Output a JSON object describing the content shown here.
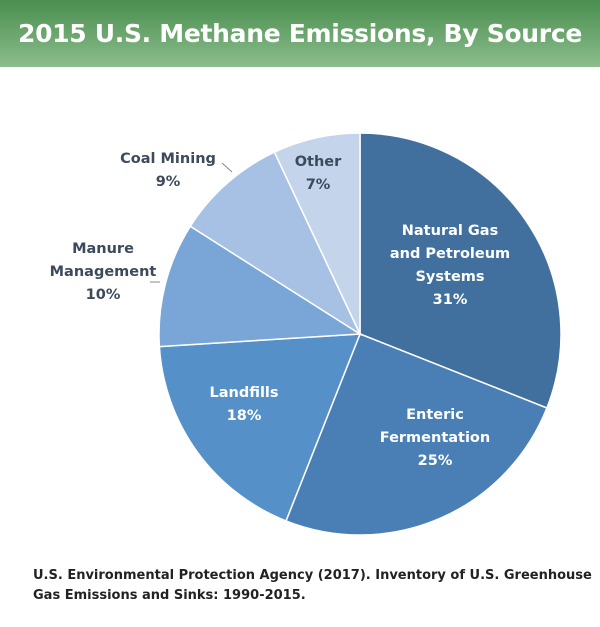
{
  "chart_data": {
    "type": "pie",
    "title": "2015 U.S. Methane Emissions, By Source",
    "start": "12 o'clock, clockwise",
    "slices": [
      {
        "label": [
          "Natural Gas",
          "and Petroleum",
          "Systems"
        ],
        "value": 31,
        "pct": "31%",
        "color": "#41709f",
        "text_color": "#ffffff"
      },
      {
        "label": [
          "Enteric",
          "Fermentation"
        ],
        "value": 25,
        "pct": "25%",
        "color": "#4a7fb6",
        "text_color": "#ffffff"
      },
      {
        "label": [
          "Landfills"
        ],
        "value": 18,
        "pct": "18%",
        "color": "#5590c8",
        "text_color": "#ffffff"
      },
      {
        "label": [
          "Manure",
          "Management"
        ],
        "value": 10,
        "pct": "10%",
        "color": "#79a6d7",
        "text_color": "#3c4a5c"
      },
      {
        "label": [
          "Coal Mining"
        ],
        "value": 9,
        "pct": "9%",
        "color": "#a6c1e3",
        "text_color": "#3c4a5c"
      },
      {
        "label": [
          "Other"
        ],
        "value": 7,
        "pct": "7%",
        "color": "#c4d5eb",
        "text_color": "#3c4a5c"
      }
    ],
    "source": "U.S. Environmental Protection Agency (2017). Inventory of U.S. Greenhouse Gas Emissions and Sinks: 1990-2015."
  }
}
